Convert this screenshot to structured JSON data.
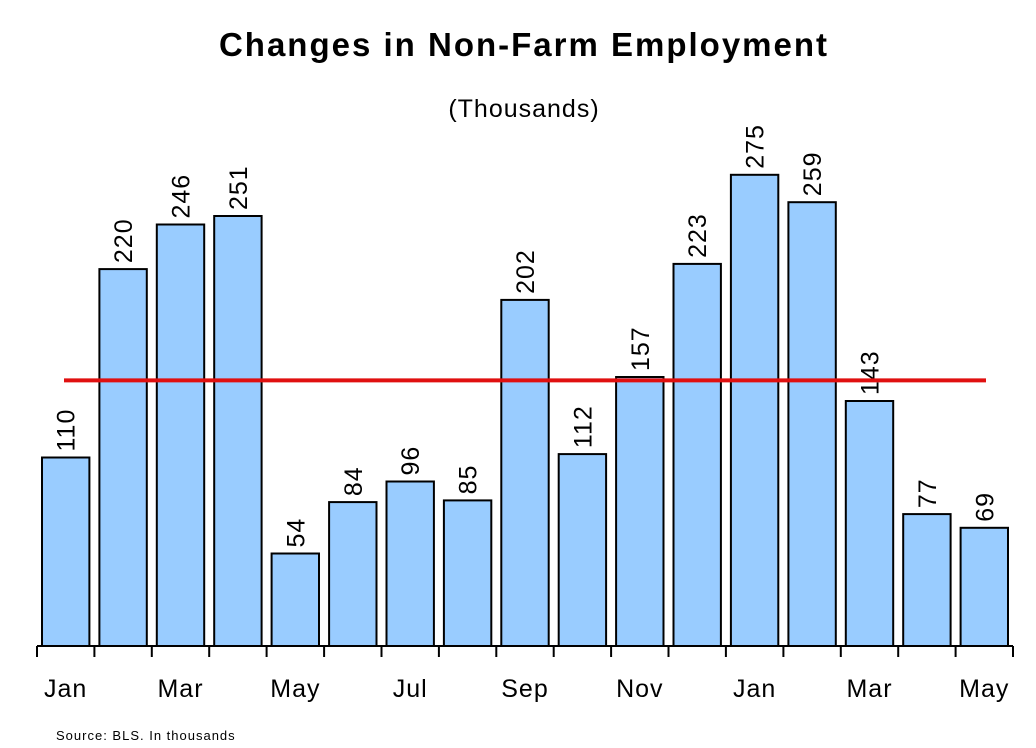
{
  "colors": {
    "bar_fill": "#99ccff",
    "bar_stroke": "#000000",
    "reference_line": "#e01010"
  },
  "chart_data": {
    "type": "bar",
    "title": "Changes in Non-Farm Employment",
    "subtitle": "(Thousands)",
    "source": "Source: BLS. In thousands",
    "tick_labels": [
      "Jan",
      "Mar",
      "May",
      "Jul",
      "Sep",
      "Nov",
      "Jan",
      "Mar",
      "May"
    ],
    "tick_label_every": 2,
    "values": [
      110,
      220,
      246,
      251,
      54,
      84,
      96,
      85,
      202,
      112,
      157,
      223,
      275,
      259,
      143,
      77,
      69
    ],
    "data_labels": [
      "110",
      "220",
      "246",
      "251",
      "54",
      "84",
      "96",
      "85",
      "202",
      "112",
      "157",
      "223",
      "275",
      "259",
      "143",
      "77",
      "69"
    ],
    "reference_line_value": 155,
    "ylim": [
      0,
      300
    ],
    "grid": false,
    "legend": "none"
  }
}
